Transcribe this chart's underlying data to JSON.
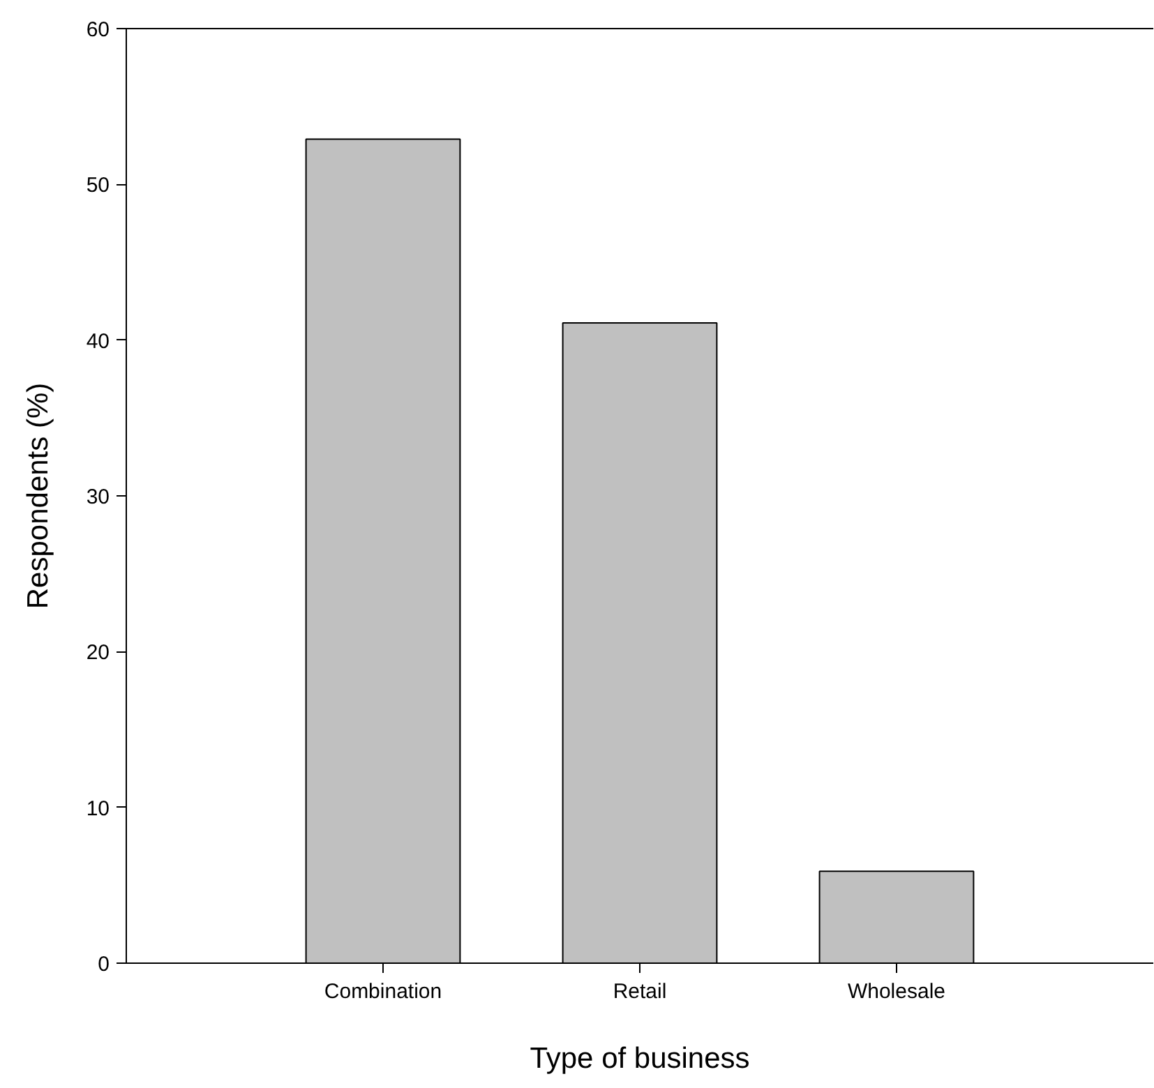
{
  "chart_data": {
    "type": "bar",
    "xlabel": "Type of business",
    "ylabel": "Respondents (%)",
    "categories": [
      "Combination",
      "Retail",
      "Wholesale"
    ],
    "values": [
      52.9,
      41.1,
      5.9
    ],
    "color": "#c0c0c0",
    "ylim": [
      0,
      60
    ],
    "yticks": [
      0,
      10,
      20,
      30,
      40,
      50,
      60
    ],
    "grid": false
  }
}
